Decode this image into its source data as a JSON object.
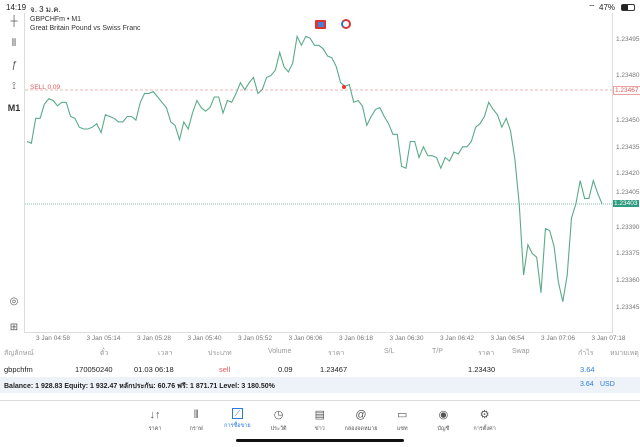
{
  "status_bar": {
    "time": "14:19",
    "date": "จ. 3 ม.ค.",
    "battery": "47%"
  },
  "chart": {
    "symbol_line": "GBPCHFm • M1",
    "description": "Great Britain Pound vs Swiss Franc",
    "timeframe": "M1",
    "sell_label": "SELL 0.09",
    "sell_price": "1.23467",
    "current_price": "1.23403",
    "line_color": "#5aaa8a",
    "sell_color": "#e05a5a",
    "price_axis": [
      "1.23495",
      "1.23480",
      "1.23450",
      "1.23435",
      "1.23420",
      "1.23405",
      "1.23390",
      "1.23375",
      "1.23360",
      "1.23345"
    ],
    "time_axis": [
      "3 Jan 04:58",
      "3 Jan 05:14",
      "3 Jan 05:28",
      "3 Jan 05:40",
      "3 Jan 05:52",
      "3 Jan 06:06",
      "3 Jan 06:18",
      "3 Jan 06:30",
      "3 Jan 06:42",
      "3 Jan 06:54",
      "3 Jan 07:06",
      "3 Jan 07:18"
    ]
  },
  "chart_data": {
    "type": "line",
    "ylim": [
      1.23335,
      1.23505
    ],
    "values": [
      1.23438,
      1.23437,
      1.23451,
      1.23451,
      1.23459,
      1.23462,
      1.23461,
      1.23458,
      1.2346,
      1.2346,
      1.23452,
      1.23451,
      1.23446,
      1.23445,
      1.23445,
      1.23446,
      1.23448,
      1.23443,
      1.23453,
      1.23452,
      1.23451,
      1.23449,
      1.23449,
      1.23452,
      1.23452,
      1.2345,
      1.2346,
      1.23465,
      1.23465,
      1.23466,
      1.23463,
      1.2346,
      1.23457,
      1.23449,
      1.23447,
      1.23439,
      1.23449,
      1.23445,
      1.23454,
      1.23461,
      1.23457,
      1.23455,
      1.23457,
      1.23463,
      1.23463,
      1.23454,
      1.23461,
      1.2346,
      1.23465,
      1.23471,
      1.23467,
      1.23471,
      1.23474,
      1.23465,
      1.23467,
      1.23474,
      1.23475,
      1.23478,
      1.23488,
      1.2348,
      1.23477,
      1.23482,
      1.23497,
      1.23492,
      1.23497,
      1.23496,
      1.23492,
      1.23492,
      1.2349,
      1.23486,
      1.23485,
      1.2348,
      1.23471,
      1.23469,
      1.2347,
      1.2346,
      1.23461,
      1.23458,
      1.23447,
      1.23452,
      1.23456,
      1.23457,
      1.23452,
      1.23448,
      1.23442,
      1.23442,
      1.23424,
      1.23423,
      1.23438,
      1.23438,
      1.23429,
      1.23435,
      1.2343,
      1.2343,
      1.23429,
      1.23423,
      1.23429,
      1.23427,
      1.23432,
      1.23431,
      1.23435,
      1.23435,
      1.23438,
      1.23446,
      1.23448,
      1.23452,
      1.2346,
      1.23456,
      1.23453,
      1.23446,
      1.23451,
      1.23444,
      1.23428,
      1.23403,
      1.23363,
      1.2338,
      1.23375,
      1.23373,
      1.23353,
      1.23389,
      1.23388,
      1.23379,
      1.23359,
      1.23348,
      1.23363,
      1.23395,
      1.23403,
      1.23416,
      1.23406,
      1.23406,
      1.23416,
      1.23409,
      1.23403
    ]
  },
  "positions": {
    "headers": [
      "สัญลักษณ์",
      "ตั๋ว",
      "เวลา",
      "ประเภท",
      "Volume",
      "ราคา",
      "S/L",
      "T/P",
      "ราคา",
      "Swap",
      "กำไร",
      "หมายเหตุ"
    ],
    "row": {
      "symbol": "gbpchfm",
      "ticket": "170050240",
      "time": "01.03 06:18",
      "type": "sell",
      "volume": "0.09",
      "open_price": "1.23467",
      "price": "1.23430",
      "profit": "3.64"
    },
    "balance_line": "Balance: 1 928.83 Equity: 1 932.47 หลักประกัน: 60.76 ฟรี: 1 871.71 Level: 3 180.50%",
    "total_profit": "3.64",
    "currency": "USD"
  },
  "tabs": [
    {
      "label": "ราคา",
      "icon": "quotes-icon"
    },
    {
      "label": "กราฟ",
      "icon": "chart-icon"
    },
    {
      "label": "การซื้อขาย",
      "icon": "trade-icon",
      "active": true
    },
    {
      "label": "ประวัติ",
      "icon": "history-icon"
    },
    {
      "label": "ข่าว",
      "icon": "news-icon"
    },
    {
      "label": "กล่องจดหมาย",
      "icon": "mailbox-icon"
    },
    {
      "label": "แชท",
      "icon": "chat-icon"
    },
    {
      "label": "บัญชี",
      "icon": "account-icon"
    },
    {
      "label": "การตั้งค่า",
      "icon": "settings-icon"
    }
  ]
}
